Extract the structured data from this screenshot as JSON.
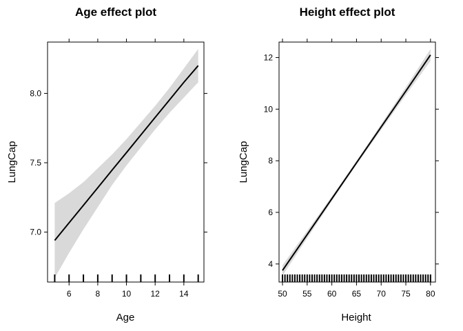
{
  "chart_data": [
    {
      "type": "line",
      "title": "Age effect plot",
      "xlabel": "Age",
      "ylabel": "LungCap",
      "xlim": [
        4.5,
        15.4
      ],
      "ylim": [
        6.64,
        8.37
      ],
      "x_ticks": [
        6,
        8,
        10,
        12,
        14
      ],
      "y_ticks": [
        7.0,
        7.5,
        8.0
      ],
      "y_tick_labels": [
        "7.0",
        "7.5",
        "8.0"
      ],
      "x": [
        5,
        6,
        7,
        8,
        9,
        10,
        11,
        12,
        13,
        14,
        15
      ],
      "fit": [
        6.94,
        7.067,
        7.193,
        7.32,
        7.447,
        7.573,
        7.7,
        7.827,
        7.953,
        8.08,
        8.2
      ],
      "lower": [
        6.67,
        6.85,
        7.02,
        7.18,
        7.34,
        7.48,
        7.61,
        7.74,
        7.86,
        7.97,
        8.08
      ],
      "upper": [
        7.21,
        7.28,
        7.36,
        7.46,
        7.56,
        7.67,
        7.79,
        7.91,
        8.04,
        8.18,
        8.32
      ],
      "rug": [
        5,
        6,
        7,
        8,
        9,
        10,
        11,
        12,
        13,
        14,
        15
      ],
      "grid": false,
      "band_color": "#d9d9d9",
      "line_color": "#000000"
    },
    {
      "type": "line",
      "title": "Height effect plot",
      "xlabel": "Height",
      "ylabel": "LungCap",
      "xlim": [
        49.3,
        81.0
      ],
      "ylim": [
        3.3,
        12.6
      ],
      "x_ticks": [
        50,
        55,
        60,
        65,
        70,
        75,
        80
      ],
      "y_ticks": [
        4,
        6,
        8,
        10,
        12
      ],
      "y_tick_labels": [
        "4",
        "6",
        "8",
        "10",
        "12"
      ],
      "x": [
        50,
        55,
        60,
        65,
        70,
        75,
        80
      ],
      "fit": [
        3.75,
        5.14,
        6.53,
        7.92,
        9.31,
        10.7,
        12.1
      ],
      "lower": [
        3.55,
        5.0,
        6.44,
        7.85,
        9.2,
        10.55,
        11.87
      ],
      "upper": [
        3.95,
        5.28,
        6.62,
        7.99,
        9.42,
        10.85,
        12.33
      ],
      "rug": [
        50,
        50.5,
        51,
        51.5,
        52,
        52.5,
        53,
        53.5,
        54,
        54.5,
        55,
        55.5,
        56,
        56.5,
        57,
        57.5,
        58,
        58.5,
        59,
        59.5,
        60,
        60.5,
        61,
        61.5,
        62,
        62.5,
        63,
        63.5,
        64,
        64.5,
        65,
        65.5,
        66,
        66.5,
        67,
        67.5,
        68,
        68.5,
        69,
        69.5,
        70,
        70.5,
        71,
        71.5,
        72,
        72.5,
        73,
        73.5,
        74,
        74.5,
        75,
        75.5,
        76,
        76.5,
        77,
        77.5,
        78,
        78.5,
        79,
        79.5,
        80
      ],
      "grid": false,
      "band_color": "#d9d9d9",
      "line_color": "#000000"
    }
  ]
}
